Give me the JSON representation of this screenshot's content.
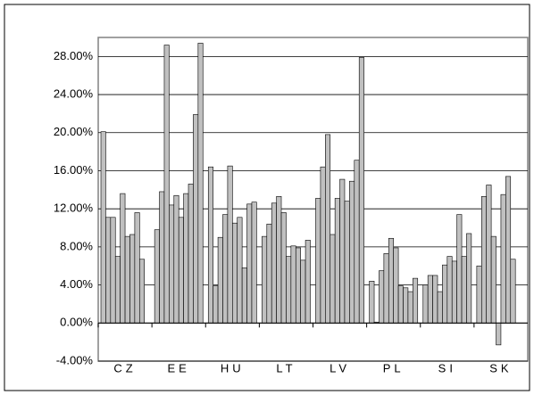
{
  "chart_data": {
    "type": "bar",
    "categories": [
      "CZ",
      "EE",
      "HU",
      "LT",
      "LV",
      "PL",
      "SI",
      "SK"
    ],
    "series": [
      {
        "color": "#c0c0c0",
        "values": [
          20.1,
          9.8,
          16.4,
          9.1,
          13.1,
          4.4,
          4.0,
          6.0
        ]
      },
      {
        "color": "#c0c0c0",
        "values": [
          11.1,
          13.8,
          3.9,
          10.4,
          16.4,
          0.1,
          5.0,
          13.3
        ]
      },
      {
        "color": "#c0c0c0",
        "values": [
          11.1,
          29.2,
          9.0,
          12.6,
          19.8,
          5.5,
          5.0,
          14.5
        ]
      },
      {
        "color": "#c0c0c0",
        "values": [
          7.0,
          12.4,
          11.4,
          13.3,
          9.3,
          7.3,
          3.3,
          9.1
        ]
      },
      {
        "color": "#c0c0c0",
        "values": [
          13.6,
          13.4,
          16.5,
          11.6,
          13.1,
          8.9,
          6.1,
          -2.3
        ]
      },
      {
        "color": "#c0c0c0",
        "values": [
          9.1,
          11.1,
          10.5,
          7.0,
          15.1,
          7.9,
          7.0,
          13.5
        ]
      },
      {
        "color": "#c0c0c0",
        "values": [
          9.3,
          13.6,
          11.1,
          8.1,
          12.8,
          3.9,
          6.5,
          15.4
        ]
      },
      {
        "color": "#c0c0c0",
        "values": [
          11.6,
          14.6,
          5.8,
          7.9,
          14.9,
          3.7,
          11.4,
          6.7
        ]
      },
      {
        "color": "#c0c0c0",
        "values": [
          6.7,
          21.9,
          12.5,
          6.6,
          17.1,
          3.3,
          7.0,
          null
        ]
      },
      {
        "color": "#c0c0c0",
        "values": [
          null,
          29.4,
          12.7,
          8.7,
          27.9,
          4.7,
          9.4,
          null
        ]
      }
    ],
    "ylim": [
      -4,
      30
    ],
    "yticks": [
      {
        "value": -4,
        "label": "-4.00%"
      },
      {
        "value": 0,
        "label": "0.00%"
      },
      {
        "value": 4,
        "label": "4.00%"
      },
      {
        "value": 8,
        "label": "8.00%"
      },
      {
        "value": 12,
        "label": "12.00%"
      },
      {
        "value": 16,
        "label": "16.00%"
      },
      {
        "value": 20,
        "label": "20.00%"
      },
      {
        "value": 24,
        "label": "24.00%"
      },
      {
        "value": 28,
        "label": "28.00%"
      }
    ],
    "grid": true
  }
}
